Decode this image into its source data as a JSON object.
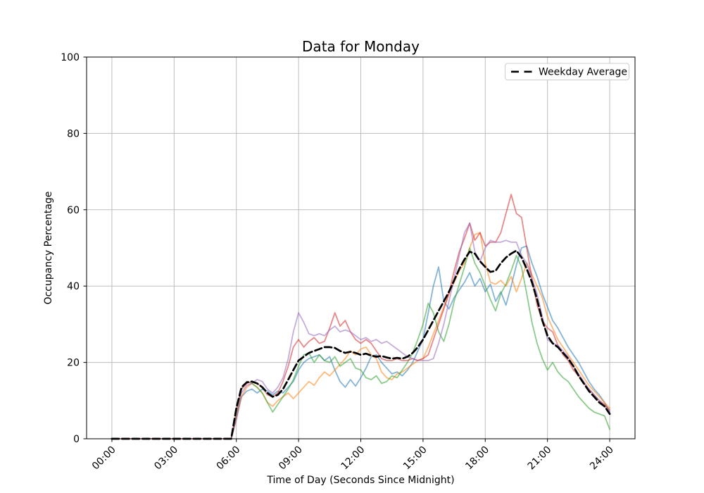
{
  "figure": {
    "background": "#ffffff"
  },
  "chart_data": {
    "type": "line",
    "title": "Data for Monday",
    "xlabel": "Time of Day (Seconds Since Midnight)",
    "ylabel": "Occupancy Percentage",
    "x_tick_labels": [
      "00:00",
      "03:00",
      "06:00",
      "09:00",
      "12:00",
      "15:00",
      "18:00",
      "21:00",
      "24:00"
    ],
    "x_tick_hours": [
      0,
      3,
      6,
      9,
      12,
      15,
      18,
      21,
      24
    ],
    "y_ticks": [
      0,
      20,
      40,
      60,
      80,
      100
    ],
    "ylim": [
      0,
      100
    ],
    "xlim_hours": [
      -1.22,
      25.22
    ],
    "grid": true,
    "grid_color": "#bdbdbd",
    "legend": {
      "label": "Weekday Average",
      "position": "upper right"
    },
    "x_hours": {
      "start": 0,
      "step": 0.25,
      "count": 97
    },
    "series": [
      {
        "name": "monday-series-1",
        "color": "#1f77b4",
        "opacity": 0.55,
        "width": 1.8,
        "values": [
          0,
          0,
          0,
          0,
          0,
          0,
          0,
          0,
          0,
          0,
          0,
          0,
          0,
          0,
          0,
          0,
          0,
          0,
          0,
          0,
          0,
          0,
          0,
          0,
          5.5,
          11,
          12.5,
          13,
          12,
          13,
          12.5,
          11.5,
          12.5,
          12,
          13.5,
          15,
          18,
          20,
          21,
          21.5,
          22,
          20.5,
          21.5,
          18,
          15,
          13.5,
          15.5,
          13.8,
          16,
          18.5,
          21.5,
          22,
          20,
          18.5,
          17,
          17.5,
          16.5,
          18,
          20,
          23,
          26,
          33,
          40,
          45,
          36,
          34,
          37,
          39,
          41,
          43.5,
          40,
          42,
          38.5,
          40.5,
          36,
          38.5,
          35,
          40,
          45.5,
          50,
          50.5,
          46,
          42.5,
          38,
          34.5,
          31,
          29,
          26.5,
          24,
          22,
          20,
          17.5,
          15,
          13,
          11.5,
          9.5,
          7
        ]
      },
      {
        "name": "monday-series-2",
        "color": "#ff7f0e",
        "opacity": 0.55,
        "width": 1.8,
        "values": [
          0,
          0,
          0,
          0,
          0,
          0,
          0,
          0,
          0,
          0,
          0,
          0,
          0,
          0,
          0,
          0,
          0,
          0,
          0,
          0,
          0,
          0,
          0,
          0,
          5,
          11,
          13.5,
          14.5,
          13.5,
          12,
          9.5,
          8.5,
          10,
          11,
          12,
          10.5,
          12,
          13.5,
          15,
          14,
          16,
          17.5,
          16.5,
          18,
          19.5,
          21,
          23,
          22,
          23.5,
          24,
          22,
          21,
          17.5,
          16,
          15.5,
          17,
          17.5,
          18.5,
          19.5,
          20.5,
          21,
          24,
          27.5,
          31,
          34.5,
          38,
          41,
          44,
          46,
          50,
          53.5,
          54,
          46,
          41,
          40.5,
          41.5,
          40,
          42.5,
          38.5,
          42,
          46,
          43,
          40,
          37,
          32,
          29,
          26,
          24,
          22,
          20,
          18,
          16,
          14,
          12.5,
          11,
          9.5,
          8
        ]
      },
      {
        "name": "monday-series-3",
        "color": "#2ca02c",
        "opacity": 0.55,
        "width": 1.8,
        "values": [
          0,
          0,
          0,
          0,
          0,
          0,
          0,
          0,
          0,
          0,
          0,
          0,
          0,
          0,
          0,
          0,
          0,
          0,
          0,
          0,
          0,
          0,
          0,
          0,
          6.5,
          13,
          15,
          14.5,
          13.5,
          12,
          9.5,
          7,
          9,
          11,
          13,
          15.5,
          19,
          22,
          22.5,
          20,
          22,
          20.5,
          20,
          21.5,
          19,
          20,
          21,
          18.5,
          18,
          16,
          15.5,
          16.5,
          14.5,
          15,
          16.5,
          16,
          18,
          20,
          22.5,
          26,
          30,
          35.5,
          33,
          28,
          25.5,
          30,
          36,
          40.5,
          45,
          50,
          46,
          43.5,
          40,
          36.5,
          33.5,
          38,
          40.5,
          44,
          48,
          45,
          38,
          30.5,
          25,
          21,
          18,
          20,
          17.5,
          16,
          15,
          13,
          11,
          9.5,
          8,
          7,
          6.5,
          6,
          2.5
        ]
      },
      {
        "name": "monday-series-4",
        "color": "#d62728",
        "opacity": 0.55,
        "width": 1.8,
        "values": [
          0,
          0,
          0,
          0,
          0,
          0,
          0,
          0,
          0,
          0,
          0,
          0,
          0,
          0,
          0,
          0,
          0,
          0,
          0,
          0,
          0,
          0,
          0,
          0,
          7,
          13,
          14.5,
          15,
          14.5,
          13.5,
          11.5,
          11,
          12,
          15,
          19,
          24,
          26,
          24,
          25.5,
          26.5,
          25,
          25.5,
          29,
          33,
          29.5,
          31,
          28,
          26,
          25,
          26,
          25,
          23,
          21,
          20.5,
          20.5,
          21,
          20.5,
          20.5,
          21,
          20.5,
          21,
          22,
          26,
          30,
          34,
          38,
          44,
          49,
          52.5,
          56.5,
          52,
          54,
          50.5,
          51.5,
          51.5,
          54,
          59,
          64,
          59,
          58,
          50,
          42,
          35,
          31,
          29,
          28,
          24.5,
          22,
          20.5,
          18,
          16.5,
          14.5,
          13,
          11.5,
          10,
          9,
          7.5
        ]
      },
      {
        "name": "monday-series-5",
        "color": "#9467bd",
        "opacity": 0.55,
        "width": 1.8,
        "values": [
          0,
          0,
          0,
          0,
          0,
          0,
          0,
          0,
          0,
          0,
          0,
          0,
          0,
          0,
          0,
          0,
          0,
          0,
          0,
          0,
          0,
          0,
          0,
          0,
          5,
          12,
          14,
          14.5,
          15.5,
          15,
          13,
          12,
          13.5,
          16,
          21,
          28,
          33,
          30.5,
          27.5,
          27,
          27.5,
          27,
          28.5,
          29.5,
          28,
          28.5,
          28,
          27,
          26,
          26.5,
          25.5,
          26,
          25,
          25.5,
          24.5,
          23.5,
          22.5,
          21.5,
          21,
          20.5,
          20.5,
          20.5,
          21,
          25,
          30,
          36,
          42,
          48,
          54,
          56.5,
          49,
          46.5,
          50,
          52,
          51.5,
          51.5,
          52,
          51.5,
          51.5,
          48,
          46,
          42,
          38,
          32,
          26,
          25,
          24.5,
          23,
          21.5,
          19,
          17,
          15,
          13,
          11.5,
          10,
          8.5,
          7
        ]
      },
      {
        "name": "Weekday Average",
        "color": "#000000",
        "opacity": 1,
        "width": 2.7,
        "dashed": true,
        "values": [
          0,
          0,
          0,
          0,
          0,
          0,
          0,
          0,
          0,
          0,
          0,
          0,
          0,
          0,
          0,
          0,
          0,
          0,
          0,
          0,
          0,
          0,
          0,
          0,
          8,
          13.5,
          14.8,
          15,
          14.5,
          13.5,
          12,
          11,
          11.5,
          13,
          15.5,
          18,
          20.5,
          21.5,
          22.5,
          23,
          23.5,
          24,
          24,
          23.8,
          23,
          22.5,
          22.8,
          22.5,
          22,
          22.3,
          21.8,
          21.5,
          21.7,
          21.3,
          21,
          21.2,
          21,
          21.5,
          22.5,
          24,
          26,
          28.5,
          31,
          33.5,
          36,
          38.5,
          41.5,
          44.5,
          47,
          49,
          48.5,
          46.5,
          45,
          43.7,
          44,
          46,
          47.5,
          48.5,
          49.3,
          47.5,
          44.5,
          41,
          36.5,
          31,
          27,
          25,
          24,
          22.5,
          21,
          19,
          16.5,
          14.5,
          12.5,
          11,
          9.5,
          8.5,
          6.5
        ]
      }
    ]
  }
}
